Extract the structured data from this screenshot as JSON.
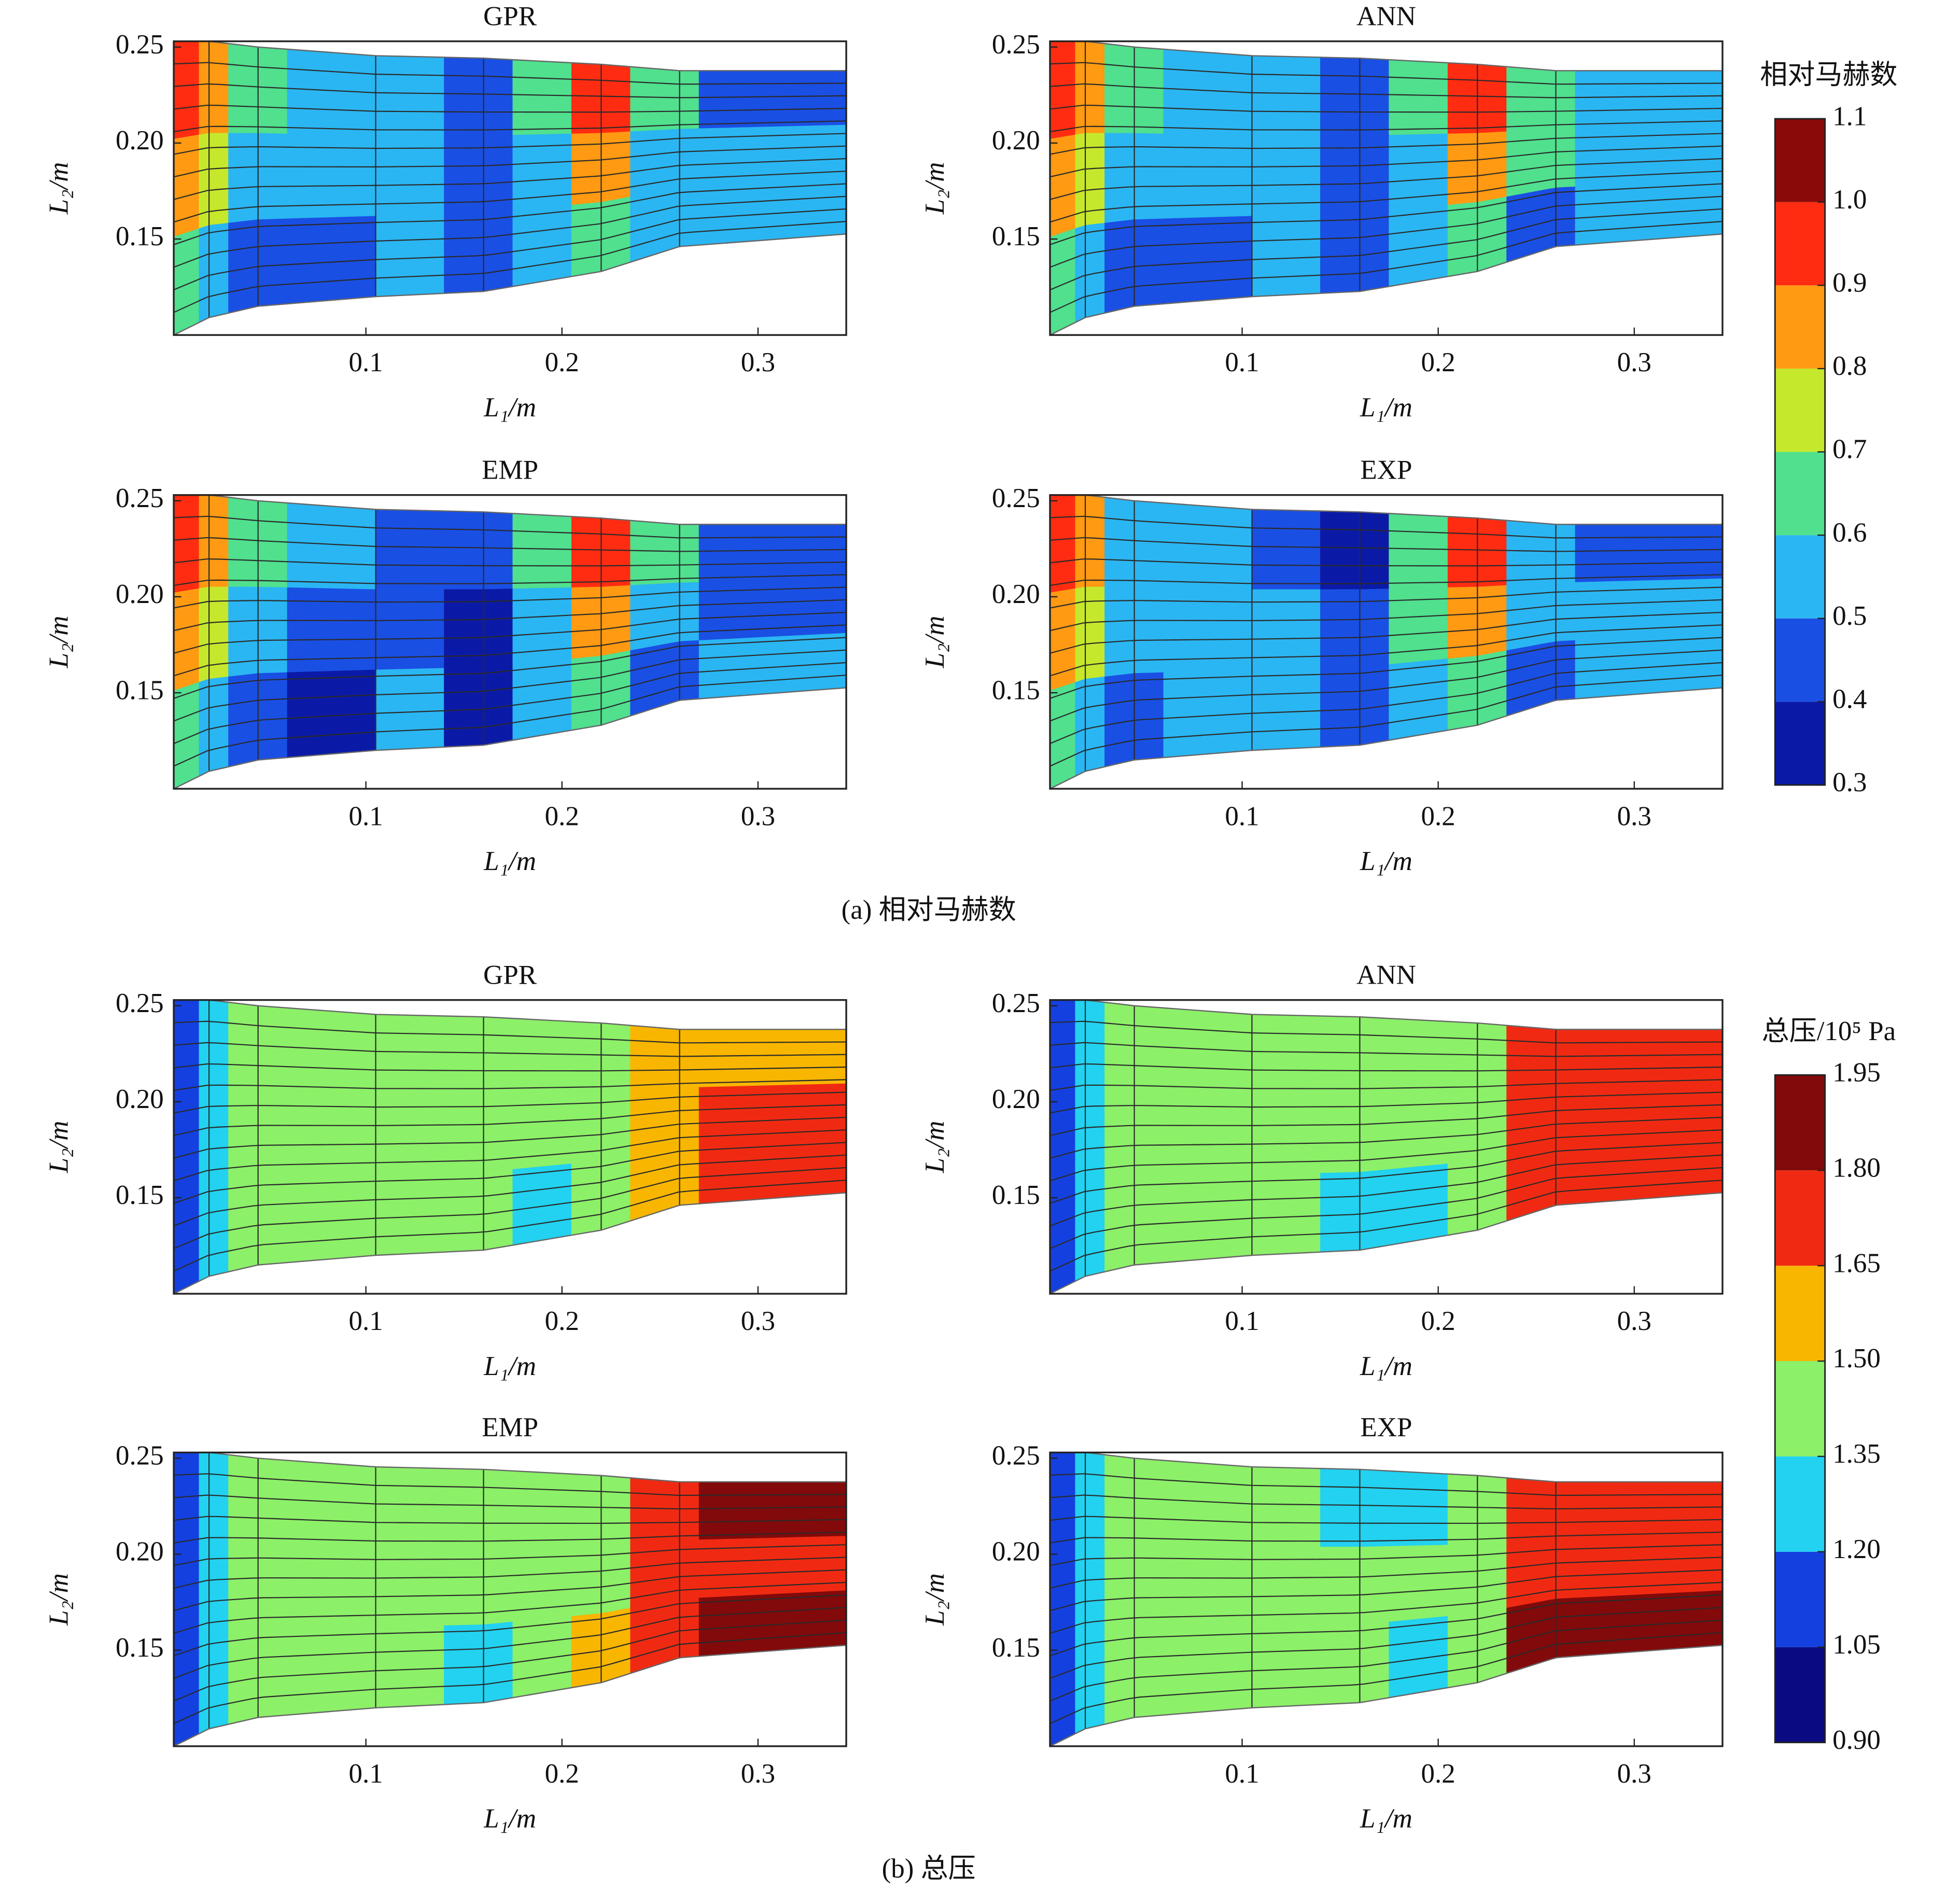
{
  "chart_data": [
    {
      "type": "contour",
      "caption": "(a) 相对马赫数",
      "colorbar": {
        "title": "相对马赫数",
        "zlim": [
          0.3,
          1.1
        ],
        "zticks": [
          0.3,
          0.4,
          0.5,
          0.6,
          0.7,
          0.8,
          0.9,
          {
            "value": 1,
            "label": "1.0"
          },
          1.1
        ],
        "colors": [
          "#0b1aa6",
          "#1a4fe4",
          "#2ab6f2",
          "#50e08e",
          "#c6e82c",
          "#ff9a12",
          "#ff2c12",
          "#8a0a0a"
        ]
      },
      "panels": [
        {
          "title": "GPR",
          "xlabel": "L₁/m",
          "ylabel": "L₂/m",
          "xlim": [
            0.002,
            0.345
          ],
          "ylim": [
            0.1,
            0.253
          ],
          "xticks": [
            0.1,
            0.2,
            0.3
          ],
          "yticks": [
            0.15,
            {
              "value": 0.2,
              "label": "0.20"
            },
            0.25
          ],
          "boundary": {
            "x": [
              0.002,
              0.02,
              0.045,
              0.105,
              0.16,
              0.22,
              0.26,
              0.345
            ],
            "top": [
              0.253,
              0.253,
              0.25,
              0.2455,
              0.2442,
              0.241,
              0.2377,
              0.2377
            ],
            "bottom": [
              0.1,
              0.1091,
              0.115,
              0.12,
              0.1227,
              0.1331,
              0.1461,
              0.1526
            ]
          },
          "x_edges": [
            0.002,
            0.015,
            0.03,
            0.06,
            0.105,
            0.14,
            0.175,
            0.205,
            0.235,
            0.27,
            0.345
          ],
          "z": [
            [
              0.95,
              0.85,
              0.65,
              0.55,
              0.55,
              0.45,
              0.65,
              0.95,
              0.65,
              0.45
            ],
            [
              0.85,
              0.75,
              0.55,
              0.55,
              0.55,
              0.45,
              0.55,
              0.85,
              0.55,
              0.55
            ],
            [
              0.65,
              0.6,
              0.45,
              0.45,
              0.55,
              0.45,
              0.55,
              0.65,
              0.55,
              0.55
            ]
          ]
        },
        {
          "title": "ANN",
          "xlabel": "L₁/m",
          "ylabel": "L₂/m",
          "xlim": [
            0.002,
            0.345
          ],
          "ylim": [
            0.1,
            0.253
          ],
          "xticks": [
            0.1,
            0.2,
            0.3
          ],
          "yticks": [
            0.15,
            {
              "value": 0.2,
              "label": "0.20"
            },
            0.25
          ],
          "boundary": {
            "x": [
              0.002,
              0.02,
              0.045,
              0.105,
              0.16,
              0.22,
              0.26,
              0.345
            ],
            "top": [
              0.253,
              0.253,
              0.25,
              0.2455,
              0.2442,
              0.241,
              0.2377,
              0.2377
            ],
            "bottom": [
              0.1,
              0.1091,
              0.115,
              0.12,
              0.1227,
              0.1331,
              0.1461,
              0.1526
            ]
          },
          "x_edges": [
            0.002,
            0.015,
            0.03,
            0.06,
            0.105,
            0.14,
            0.175,
            0.205,
            0.235,
            0.27,
            0.345
          ],
          "z": [
            [
              0.95,
              0.85,
              0.65,
              0.55,
              0.55,
              0.45,
              0.65,
              0.95,
              0.65,
              0.55
            ],
            [
              0.85,
              0.75,
              0.55,
              0.55,
              0.55,
              0.45,
              0.55,
              0.85,
              0.65,
              0.55
            ],
            [
              0.65,
              0.6,
              0.45,
              0.45,
              0.55,
              0.45,
              0.55,
              0.65,
              0.45,
              0.55
            ]
          ]
        },
        {
          "title": "EMP",
          "xlabel": "L₁/m",
          "ylabel": "L₂/m",
          "xlim": [
            0.002,
            0.345
          ],
          "ylim": [
            0.1,
            0.253
          ],
          "xticks": [
            0.1,
            0.2,
            0.3
          ],
          "yticks": [
            0.15,
            {
              "value": 0.2,
              "label": "0.20"
            },
            0.25
          ],
          "boundary": {
            "x": [
              0.002,
              0.02,
              0.045,
              0.105,
              0.16,
              0.22,
              0.26,
              0.345
            ],
            "top": [
              0.253,
              0.253,
              0.25,
              0.2455,
              0.2442,
              0.241,
              0.2377,
              0.2377
            ],
            "bottom": [
              0.1,
              0.1091,
              0.115,
              0.12,
              0.1227,
              0.1331,
              0.1461,
              0.1526
            ]
          },
          "x_edges": [
            0.002,
            0.015,
            0.03,
            0.06,
            0.105,
            0.14,
            0.175,
            0.205,
            0.235,
            0.27,
            0.345
          ],
          "z": [
            [
              0.95,
              0.85,
              0.65,
              0.55,
              0.45,
              0.45,
              0.65,
              0.95,
              0.65,
              0.45
            ],
            [
              0.85,
              0.75,
              0.55,
              0.45,
              0.45,
              0.35,
              0.55,
              0.85,
              0.55,
              0.45
            ],
            [
              0.65,
              0.6,
              0.45,
              0.35,
              0.55,
              0.35,
              0.55,
              0.65,
              0.45,
              0.55
            ]
          ]
        },
        {
          "title": "EXP",
          "xlabel": "L₁/m",
          "ylabel": "L₂/m",
          "xlim": [
            0.002,
            0.345
          ],
          "ylim": [
            0.1,
            0.253
          ],
          "xticks": [
            0.1,
            0.2,
            0.3
          ],
          "yticks": [
            0.15,
            {
              "value": 0.2,
              "label": "0.20"
            },
            0.25
          ],
          "boundary": {
            "x": [
              0.002,
              0.02,
              0.045,
              0.105,
              0.16,
              0.22,
              0.26,
              0.345
            ],
            "top": [
              0.253,
              0.253,
              0.25,
              0.2455,
              0.2442,
              0.241,
              0.2377,
              0.2377
            ],
            "bottom": [
              0.1,
              0.1091,
              0.115,
              0.12,
              0.1227,
              0.1331,
              0.1461,
              0.1526
            ]
          },
          "x_edges": [
            0.002,
            0.015,
            0.03,
            0.06,
            0.105,
            0.14,
            0.175,
            0.205,
            0.235,
            0.27,
            0.345
          ],
          "z": [
            [
              0.95,
              0.85,
              0.6,
              0.55,
              0.45,
              0.35,
              0.65,
              0.95,
              0.55,
              0.45
            ],
            [
              0.85,
              0.75,
              0.55,
              0.55,
              0.55,
              0.45,
              0.65,
              0.85,
              0.55,
              0.55
            ],
            [
              0.65,
              0.55,
              0.45,
              0.55,
              0.55,
              0.45,
              0.55,
              0.65,
              0.45,
              0.55
            ]
          ]
        }
      ]
    },
    {
      "type": "contour",
      "caption": "(b) 总压",
      "colorbar": {
        "title": "总压/10⁵ Pa",
        "zlim": [
          0.9,
          1.95
        ],
        "zticks": [
          {
            "value": 0.9,
            "label": "0.90"
          },
          1.05,
          {
            "value": 1.2,
            "label": "1.20"
          },
          1.35,
          {
            "value": 1.5,
            "label": "1.50"
          },
          1.65,
          {
            "value": 1.8,
            "label": "1.80"
          },
          1.95
        ],
        "colors": [
          "#0a0a82",
          "#1440e0",
          "#22d2f0",
          "#8cf068",
          "#f8b600",
          "#f02a12",
          "#820a0a"
        ]
      },
      "panels": [
        {
          "title": "GPR",
          "xlabel": "L₁/m",
          "ylabel": "L₂/m",
          "xlim": [
            0.002,
            0.345
          ],
          "ylim": [
            0.1,
            0.253
          ],
          "xticks": [
            0.1,
            0.2,
            0.3
          ],
          "yticks": [
            0.15,
            {
              "value": 0.2,
              "label": "0.20"
            },
            0.25
          ],
          "boundary": {
            "x": [
              0.002,
              0.02,
              0.045,
              0.105,
              0.16,
              0.22,
              0.26,
              0.345
            ],
            "top": [
              0.253,
              0.253,
              0.25,
              0.2455,
              0.2442,
              0.241,
              0.2377,
              0.2377
            ],
            "bottom": [
              0.1,
              0.1091,
              0.115,
              0.12,
              0.1227,
              0.1331,
              0.1461,
              0.1526
            ]
          },
          "x_edges": [
            0.002,
            0.015,
            0.03,
            0.06,
            0.105,
            0.14,
            0.175,
            0.205,
            0.235,
            0.27,
            0.345
          ],
          "z": [
            [
              1.1,
              1.25,
              1.4,
              1.4,
              1.4,
              1.4,
              1.4,
              1.4,
              1.55,
              1.55
            ],
            [
              1.1,
              1.25,
              1.4,
              1.4,
              1.4,
              1.4,
              1.4,
              1.4,
              1.55,
              1.7
            ],
            [
              1.1,
              1.25,
              1.4,
              1.4,
              1.4,
              1.4,
              1.3,
              1.4,
              1.55,
              1.7
            ]
          ]
        },
        {
          "title": "ANN",
          "xlabel": "L₁/m",
          "ylabel": "L₂/m",
          "xlim": [
            0.002,
            0.345
          ],
          "ylim": [
            0.1,
            0.253
          ],
          "xticks": [
            0.1,
            0.2,
            0.3
          ],
          "yticks": [
            0.15,
            {
              "value": 0.2,
              "label": "0.20"
            },
            0.25
          ],
          "boundary": {
            "x": [
              0.002,
              0.02,
              0.045,
              0.105,
              0.16,
              0.22,
              0.26,
              0.345
            ],
            "top": [
              0.253,
              0.253,
              0.25,
              0.2455,
              0.2442,
              0.241,
              0.2377,
              0.2377
            ],
            "bottom": [
              0.1,
              0.1091,
              0.115,
              0.12,
              0.1227,
              0.1331,
              0.1461,
              0.1526
            ]
          },
          "x_edges": [
            0.002,
            0.015,
            0.03,
            0.06,
            0.105,
            0.14,
            0.175,
            0.205,
            0.235,
            0.27,
            0.345
          ],
          "z": [
            [
              1.1,
              1.25,
              1.45,
              1.45,
              1.45,
              1.45,
              1.45,
              1.45,
              1.7,
              1.7
            ],
            [
              1.1,
              1.25,
              1.45,
              1.45,
              1.45,
              1.45,
              1.45,
              1.45,
              1.7,
              1.7
            ],
            [
              1.1,
              1.25,
              1.45,
              1.45,
              1.45,
              1.3,
              1.3,
              1.45,
              1.7,
              1.7
            ]
          ]
        },
        {
          "title": "EMP",
          "xlabel": "L₁/m",
          "ylabel": "L₂/m",
          "xlim": [
            0.002,
            0.345
          ],
          "ylim": [
            0.1,
            0.253
          ],
          "xticks": [
            0.1,
            0.2,
            0.3
          ],
          "yticks": [
            0.15,
            {
              "value": 0.2,
              "label": "0.20"
            },
            0.25
          ],
          "boundary": {
            "x": [
              0.002,
              0.02,
              0.045,
              0.105,
              0.16,
              0.22,
              0.26,
              0.345
            ],
            "top": [
              0.253,
              0.253,
              0.25,
              0.2455,
              0.2442,
              0.241,
              0.2377,
              0.2377
            ],
            "bottom": [
              0.1,
              0.1091,
              0.115,
              0.12,
              0.1227,
              0.1331,
              0.1461,
              0.1526
            ]
          },
          "x_edges": [
            0.002,
            0.015,
            0.03,
            0.06,
            0.105,
            0.14,
            0.175,
            0.205,
            0.235,
            0.27,
            0.345
          ],
          "z": [
            [
              1.1,
              1.25,
              1.45,
              1.45,
              1.45,
              1.45,
              1.45,
              1.45,
              1.7,
              1.85
            ],
            [
              1.1,
              1.25,
              1.45,
              1.45,
              1.45,
              1.45,
              1.45,
              1.45,
              1.7,
              1.7
            ],
            [
              1.1,
              1.25,
              1.45,
              1.45,
              1.45,
              1.3,
              1.45,
              1.55,
              1.7,
              1.85
            ]
          ]
        },
        {
          "title": "EXP",
          "xlabel": "L₁/m",
          "ylabel": "L₂/m",
          "xlim": [
            0.002,
            0.345
          ],
          "ylim": [
            0.1,
            0.253
          ],
          "xticks": [
            0.1,
            0.2,
            0.3
          ],
          "yticks": [
            0.15,
            {
              "value": 0.2,
              "label": "0.20"
            },
            0.25
          ],
          "boundary": {
            "x": [
              0.002,
              0.02,
              0.045,
              0.105,
              0.16,
              0.22,
              0.26,
              0.345
            ],
            "top": [
              0.253,
              0.253,
              0.25,
              0.2455,
              0.2442,
              0.241,
              0.2377,
              0.2377
            ],
            "bottom": [
              0.1,
              0.1091,
              0.115,
              0.12,
              0.1227,
              0.1331,
              0.1461,
              0.1526
            ]
          },
          "x_edges": [
            0.002,
            0.015,
            0.03,
            0.06,
            0.105,
            0.14,
            0.175,
            0.205,
            0.235,
            0.27,
            0.345
          ],
          "z": [
            [
              1.1,
              1.25,
              1.45,
              1.45,
              1.45,
              1.3,
              1.3,
              1.45,
              1.7,
              1.7
            ],
            [
              1.1,
              1.25,
              1.45,
              1.45,
              1.45,
              1.45,
              1.45,
              1.45,
              1.7,
              1.7
            ],
            [
              1.1,
              1.25,
              1.45,
              1.45,
              1.45,
              1.45,
              1.3,
              1.45,
              1.85,
              1.85
            ]
          ]
        }
      ]
    }
  ]
}
